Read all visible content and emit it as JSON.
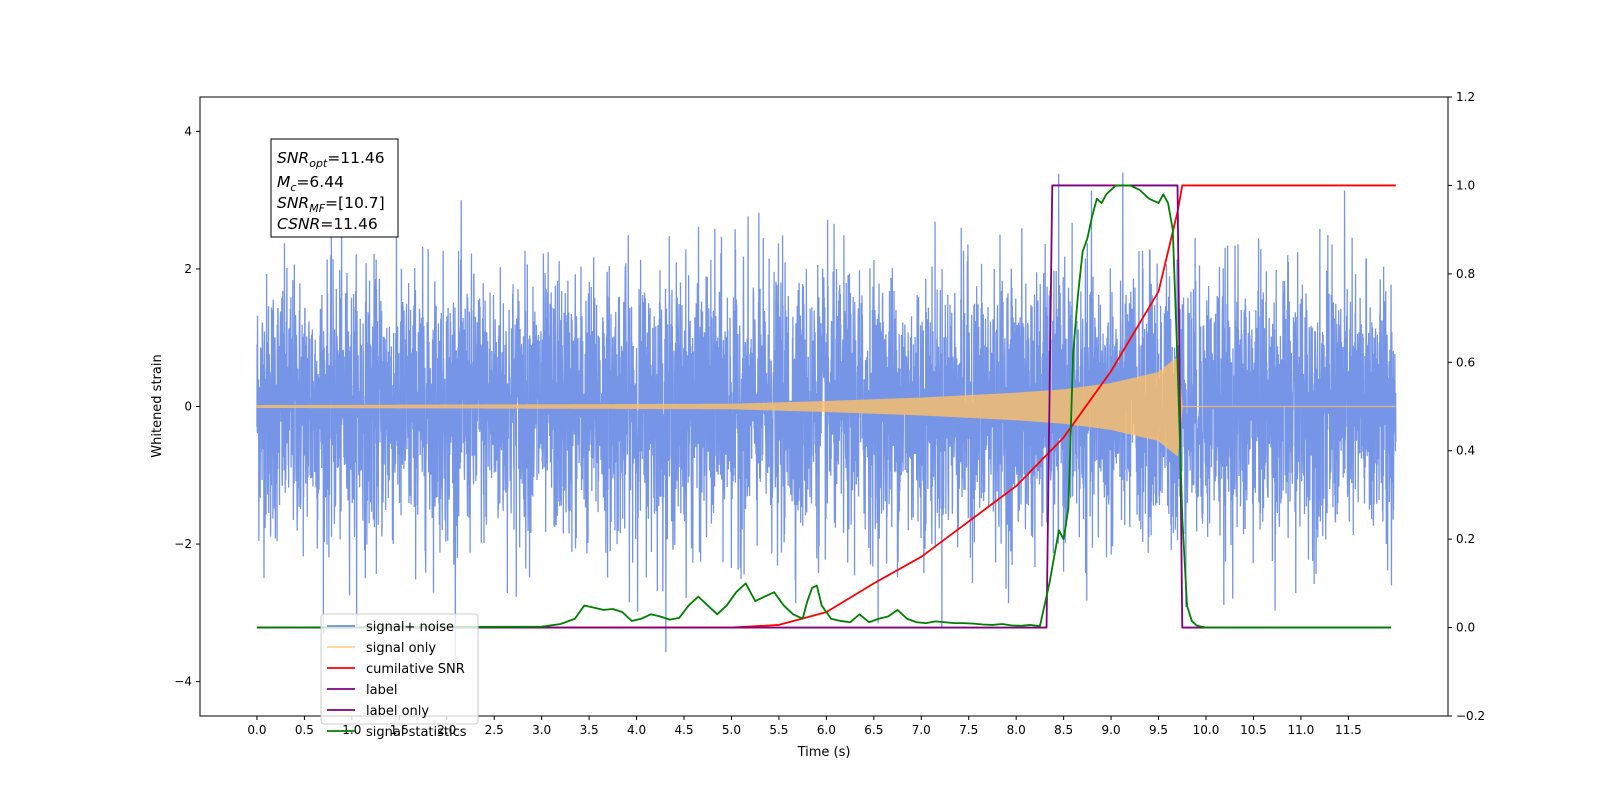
{
  "chart_data": {
    "type": "line",
    "xlabel": "Time (s)",
    "ylabel_left": "Whitened strain",
    "ylabel_right": "",
    "xlim": [
      -0.6,
      12.55
    ],
    "ylim_left": [
      -4.5,
      4.5
    ],
    "ylim_right": [
      -0.2,
      1.2
    ],
    "xticks": [
      0.0,
      0.5,
      1.0,
      1.5,
      2.0,
      2.5,
      3.0,
      3.5,
      4.0,
      4.5,
      5.0,
      5.5,
      6.0,
      6.5,
      7.0,
      7.5,
      8.0,
      8.5,
      9.0,
      9.5,
      10.0,
      10.5,
      11.0,
      11.5
    ],
    "xtick_labels": [
      "0.0",
      "0.5",
      "1.0",
      "1.5",
      "2.0",
      "2.5",
      "3.0",
      "3.5",
      "4.0",
      "4.5",
      "5.0",
      "5.5",
      "6.0",
      "6.5",
      "7.0",
      "7.5",
      "8.0",
      "8.5",
      "9.0",
      "9.5",
      "10.0",
      "10.5",
      "11.0",
      "11.5"
    ],
    "yticks_left": [
      -4,
      -2,
      0,
      2,
      4
    ],
    "ytick_labels_left": [
      "−4",
      "−2",
      "0",
      "2",
      "4"
    ],
    "yticks_right": [
      -0.2,
      0.0,
      0.2,
      0.4,
      0.6,
      0.8,
      1.0,
      1.2
    ],
    "ytick_labels_right": [
      "−0.2",
      "0.0",
      "0.2",
      "0.4",
      "0.6",
      "0.8",
      "1.0",
      "1.2"
    ],
    "grid": false,
    "legend_placement": "lower-left",
    "annotation": {
      "snr_opt_value": "=11.46",
      "mc_value": "=6.44",
      "snr_mf_value": "=[10.7]",
      "csnr_value": "=11.46"
    },
    "series": [
      {
        "name": "signal+ noise",
        "axis": "left",
        "color": "#6f8fe6",
        "kind": "noise",
        "x_range": [
          0.0,
          12.0
        ],
        "amplitude_std": 0.95,
        "approx_max": 4.1,
        "approx_min": -4.1
      },
      {
        "name": "signal only",
        "axis": "left",
        "color": "#ffbf66",
        "kind": "chirp",
        "x_range": [
          0.0,
          9.75
        ],
        "envelope": [
          [
            0.0,
            0.02
          ],
          [
            5.0,
            0.04
          ],
          [
            6.0,
            0.08
          ],
          [
            7.0,
            0.13
          ],
          [
            8.0,
            0.2
          ],
          [
            8.5,
            0.25
          ],
          [
            9.0,
            0.34
          ],
          [
            9.5,
            0.5
          ],
          [
            9.7,
            0.72
          ],
          [
            9.75,
            0.0
          ]
        ]
      },
      {
        "name": "cumilative SNR",
        "axis": "right",
        "color": "#ff0000",
        "x": [
          0.0,
          5.0,
          5.5,
          6.0,
          6.5,
          7.0,
          7.5,
          8.0,
          8.5,
          9.0,
          9.5,
          9.7,
          9.75,
          12.0
        ],
        "y": [
          0.0,
          0.0,
          0.006,
          0.035,
          0.1,
          0.16,
          0.24,
          0.32,
          0.43,
          0.58,
          0.76,
          0.94,
          1.0,
          1.0
        ]
      },
      {
        "name": "label",
        "axis": "right",
        "color": "#800080",
        "x": [
          0.0,
          8.32,
          8.38,
          9.7,
          9.75,
          11.95
        ],
        "y": [
          0.0,
          0.0,
          1.0,
          1.0,
          0.0,
          0.0
        ]
      },
      {
        "name": "label only",
        "axis": "right",
        "color": "#800080",
        "x": [],
        "y": []
      },
      {
        "name": "signal statistics",
        "axis": "right",
        "color": "#008000",
        "x": [
          0.0,
          3.0,
          3.2,
          3.35,
          3.45,
          3.55,
          3.65,
          3.75,
          3.85,
          3.95,
          4.05,
          4.15,
          4.25,
          4.35,
          4.45,
          4.55,
          4.65,
          4.75,
          4.85,
          4.95,
          5.05,
          5.15,
          5.25,
          5.35,
          5.45,
          5.55,
          5.65,
          5.75,
          5.8,
          5.85,
          5.9,
          5.95,
          6.05,
          6.15,
          6.25,
          6.35,
          6.45,
          6.55,
          6.65,
          6.75,
          6.85,
          6.95,
          7.05,
          7.15,
          7.25,
          7.35,
          7.45,
          7.55,
          7.65,
          7.75,
          7.85,
          7.95,
          8.05,
          8.15,
          8.25,
          8.35,
          8.45,
          8.5,
          8.55,
          8.6,
          8.65,
          8.7,
          8.75,
          8.8,
          8.85,
          8.9,
          8.95,
          9.0,
          9.05,
          9.1,
          9.2,
          9.3,
          9.4,
          9.5,
          9.55,
          9.6,
          9.65,
          9.7,
          9.75,
          9.8,
          9.85,
          9.9,
          9.95,
          10.0,
          10.1,
          11.95
        ],
        "y": [
          0.0,
          0.002,
          0.008,
          0.02,
          0.05,
          0.045,
          0.04,
          0.042,
          0.035,
          0.015,
          0.02,
          0.03,
          0.025,
          0.018,
          0.022,
          0.05,
          0.07,
          0.05,
          0.03,
          0.05,
          0.08,
          0.1,
          0.06,
          0.07,
          0.08,
          0.05,
          0.03,
          0.02,
          0.06,
          0.09,
          0.095,
          0.05,
          0.02,
          0.015,
          0.012,
          0.03,
          0.012,
          0.02,
          0.025,
          0.04,
          0.02,
          0.012,
          0.01,
          0.014,
          0.012,
          0.01,
          0.01,
          0.009,
          0.007,
          0.006,
          0.008,
          0.005,
          0.004,
          0.006,
          0.003,
          0.1,
          0.22,
          0.2,
          0.27,
          0.62,
          0.75,
          0.85,
          0.88,
          0.93,
          0.97,
          0.96,
          0.98,
          0.99,
          1.0,
          1.0,
          1.0,
          0.99,
          0.97,
          0.96,
          0.98,
          0.96,
          0.9,
          0.6,
          0.25,
          0.05,
          0.015,
          0.005,
          0.002,
          0.0,
          0.0,
          0.0
        ]
      }
    ]
  }
}
